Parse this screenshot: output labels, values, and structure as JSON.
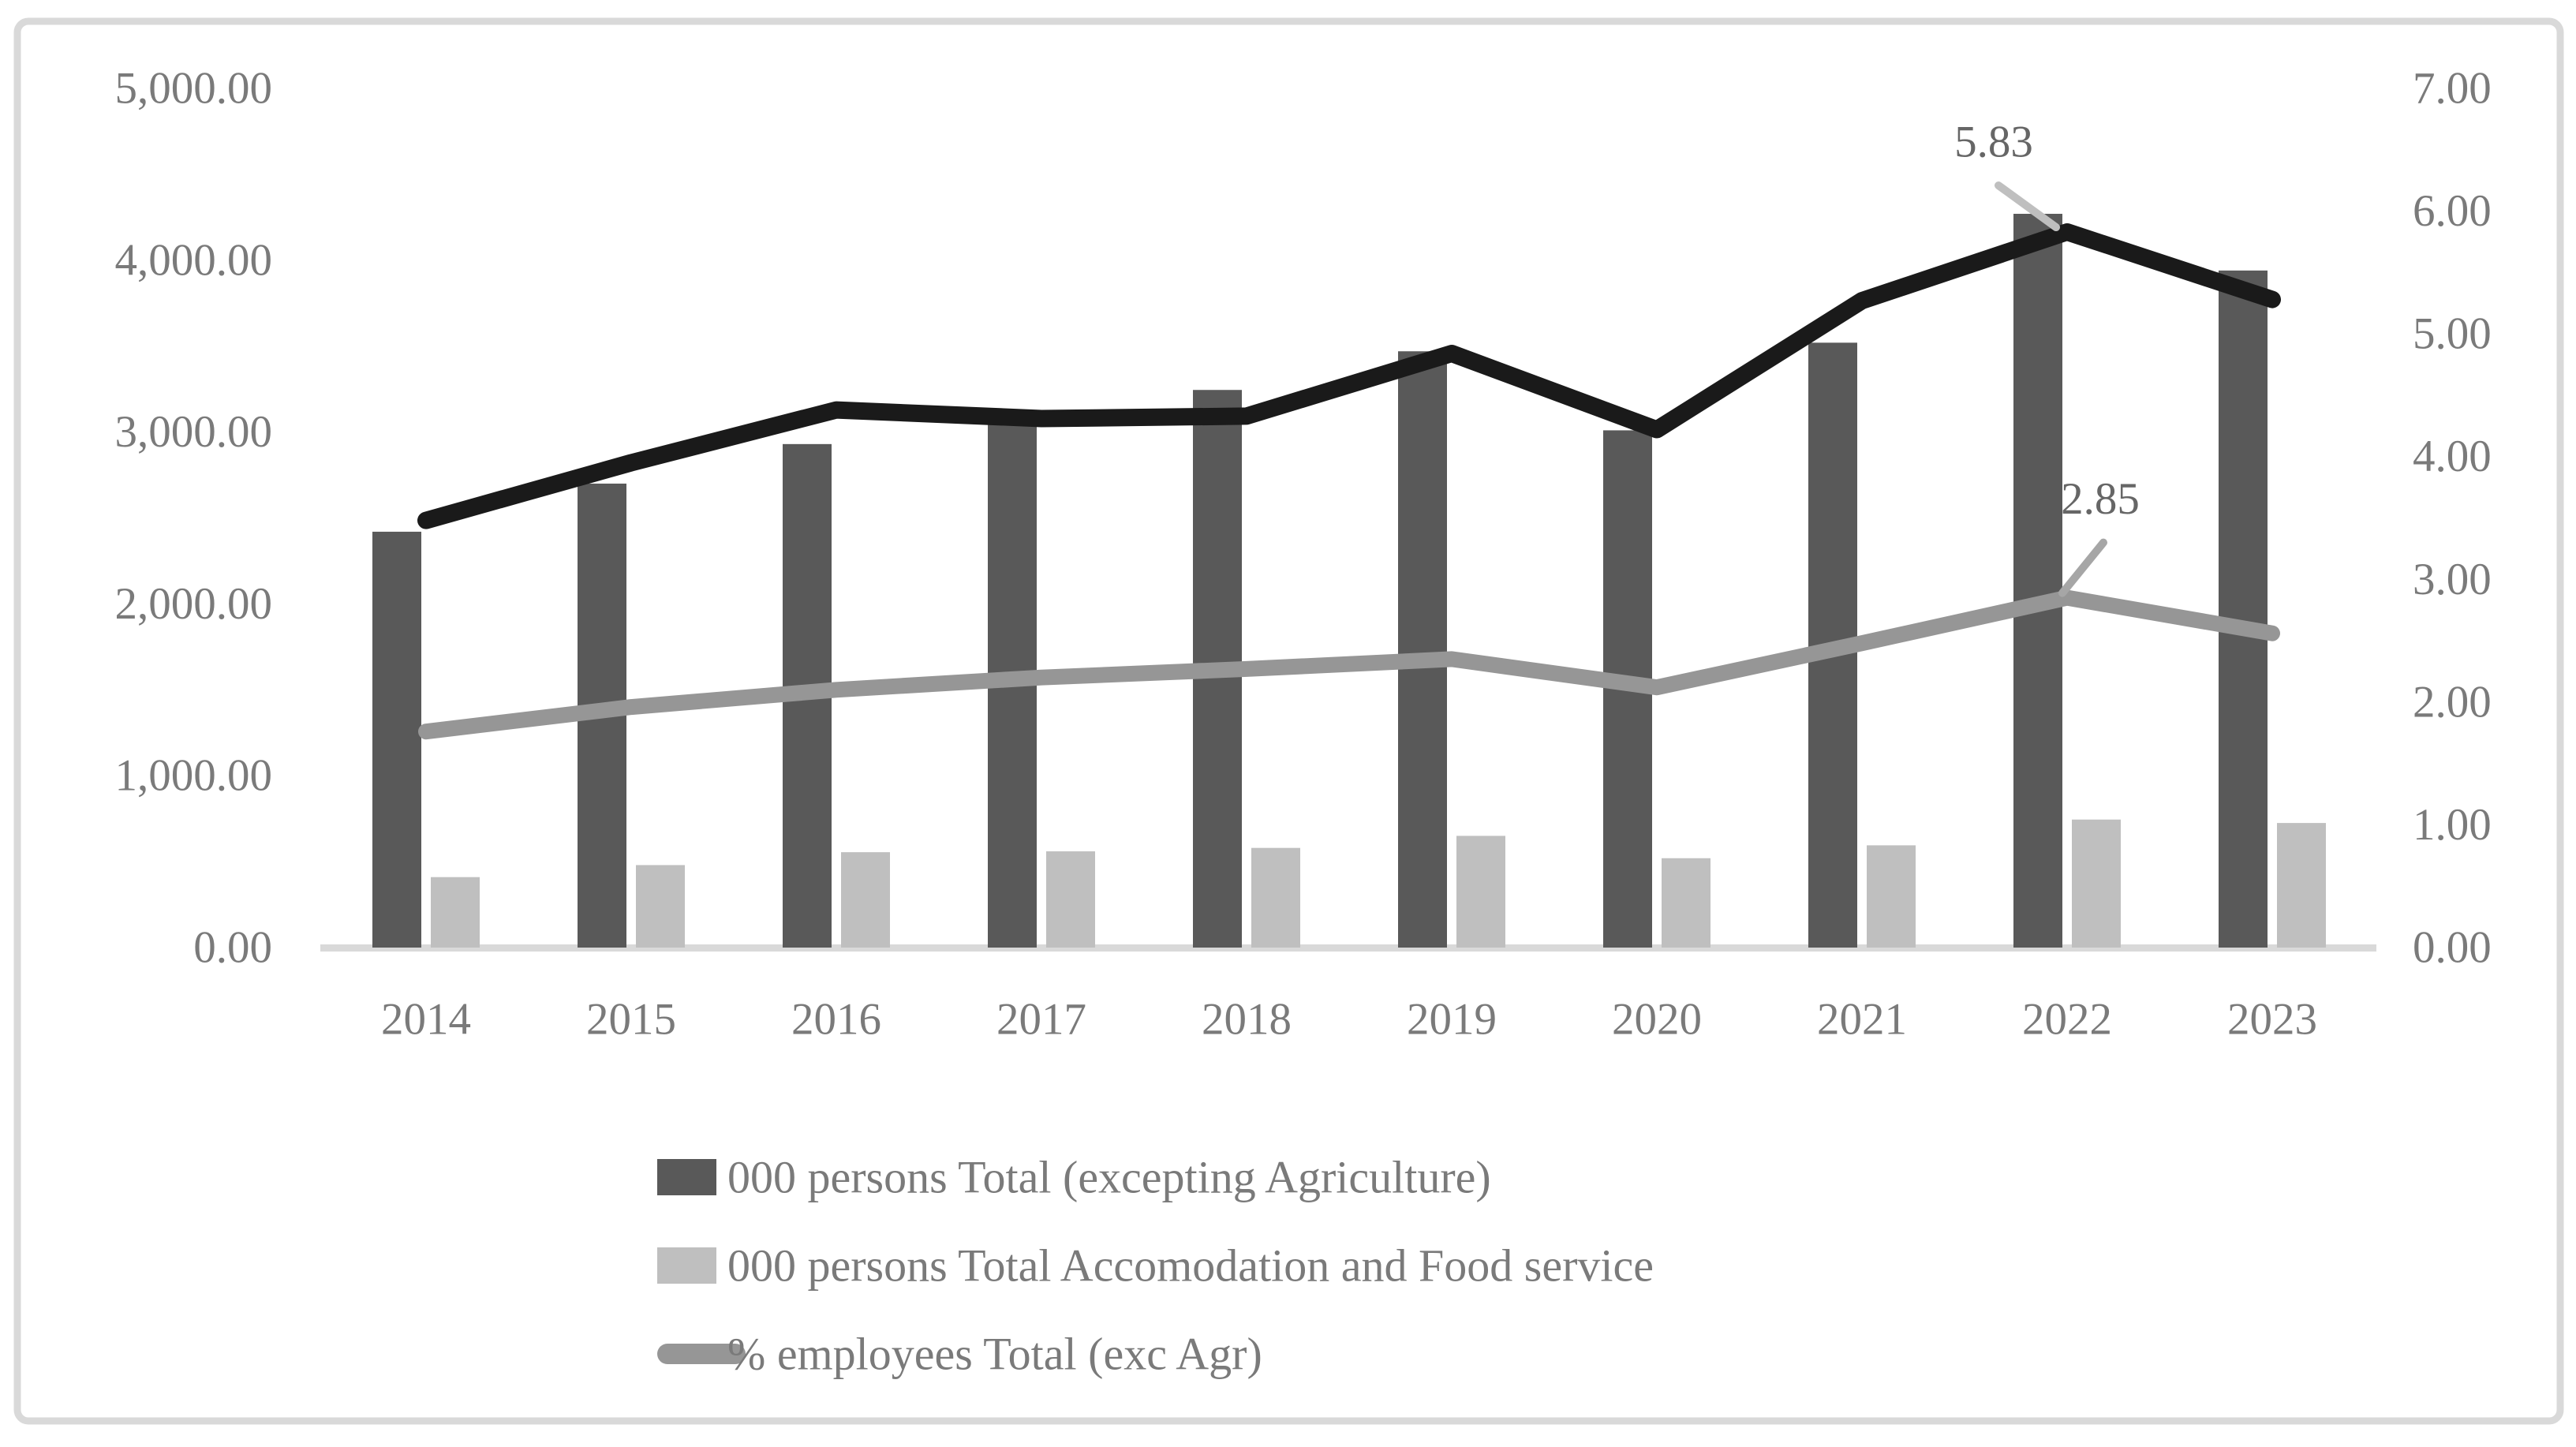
{
  "chart_data": {
    "type": "combo",
    "categories": [
      "2014",
      "2015",
      "2016",
      "2017",
      "2018",
      "2019",
      "2020",
      "2021",
      "2022",
      "2023"
    ],
    "series": [
      {
        "name": "000 persons Total (excepting Agriculture)",
        "type": "bar",
        "axis": "left",
        "color": "#595959",
        "in_legend": true,
        "values": [
          2420,
          2700,
          2930,
          3050,
          3245,
          3470,
          3010,
          3520,
          4270,
          3940
        ]
      },
      {
        "name": "000 persons Total Accomodation and Food service",
        "type": "bar",
        "axis": "left",
        "color": "#bfbfbf",
        "in_legend": true,
        "values": [
          410,
          480,
          555,
          560,
          580,
          650,
          520,
          595,
          745,
          725
        ]
      },
      {
        "name": "% employees Total (exc Agr)",
        "type": "line",
        "axis": "right",
        "color": "#969696",
        "in_legend": true,
        "values": [
          1.76,
          1.96,
          2.1,
          2.2,
          2.27,
          2.35,
          2.12,
          2.48,
          2.85,
          2.56
        ]
      },
      {
        "name": "unlabeled black line",
        "type": "line",
        "axis": "right",
        "color": "#1a1a1a",
        "in_legend": false,
        "values": [
          3.48,
          3.95,
          4.38,
          4.31,
          4.33,
          4.84,
          4.22,
          5.27,
          5.83,
          5.28
        ]
      }
    ],
    "left_axis": {
      "min": 0,
      "max": 5000,
      "tick_values": [
        5000,
        4000,
        3000,
        2000,
        1000,
        0
      ],
      "tick_labels": [
        "5,000.00",
        "4,000.00",
        "3,000.00",
        "2,000.00",
        "1,000.00",
        "0.00"
      ]
    },
    "right_axis": {
      "min": 0,
      "max": 7,
      "tick_values": [
        7,
        6,
        5,
        4,
        3,
        2,
        1,
        0
      ],
      "tick_labels": [
        "7.00",
        "6.00",
        "5.00",
        "4.00",
        "3.00",
        "2.00",
        "1.00",
        "0.00"
      ]
    },
    "annotations": [
      {
        "text": "5.83",
        "series": "unlabeled black line",
        "category": "2022"
      },
      {
        "text": "2.85",
        "series": "% employees Total (exc Agr)",
        "category": "2022"
      }
    ],
    "legend_position": "bottom",
    "grid": "off",
    "title": "",
    "xlabel": "",
    "ylabel": ""
  },
  "colors": {
    "frame": "#d9d9d9",
    "axis_line": "#d9d9d9",
    "tick_text": "#7a7a7a",
    "legend_text": "#7a7a7a",
    "annotation_text": "#666666",
    "leader_black": "#bfbfbf",
    "leader_gray": "#a6a6a6",
    "background": "#ffffff"
  }
}
